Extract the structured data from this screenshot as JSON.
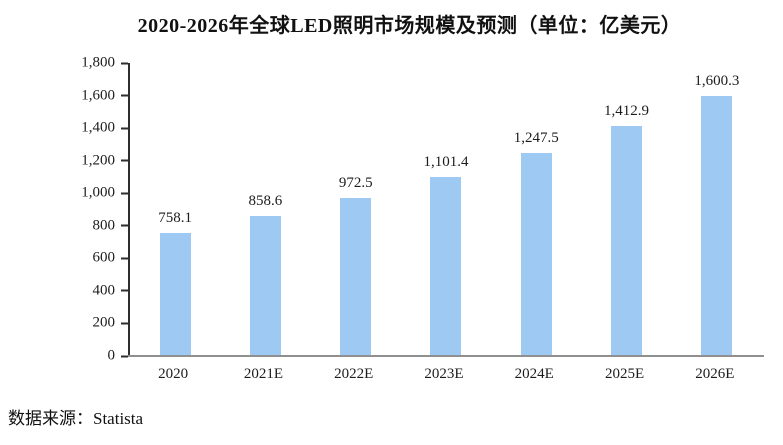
{
  "chart_data": {
    "type": "bar",
    "title": "2020-2026年全球LED照明市场规模及预测（单位：亿美元）",
    "categories": [
      "2020",
      "2021E",
      "2022E",
      "2023E",
      "2024E",
      "2025E",
      "2026E"
    ],
    "values": [
      758.1,
      858.6,
      972.5,
      1101.4,
      1247.5,
      1412.9,
      1600.3
    ],
    "value_labels": [
      "758.1",
      "858.6",
      "972.5",
      "1,101.4",
      "1,247.5",
      "1,412.9",
      "1,600.3"
    ],
    "xlabel": "",
    "ylabel": "",
    "ylim": [
      0,
      1800
    ],
    "y_tick_labels": [
      "1,800",
      "1,600",
      "1,400",
      "1,200",
      "1,000",
      "800",
      "600",
      "400",
      "200",
      "0"
    ],
    "y_tick_values": [
      1800,
      1600,
      1400,
      1200,
      1000,
      800,
      600,
      400,
      200,
      0
    ],
    "bar_color": "#9DC9F2",
    "axis_color": "#2e2e2e",
    "baseline_color": "#8f8f8f",
    "grid": false,
    "legend_position": "none"
  },
  "footer": {
    "source": "数据来源：Statista"
  }
}
